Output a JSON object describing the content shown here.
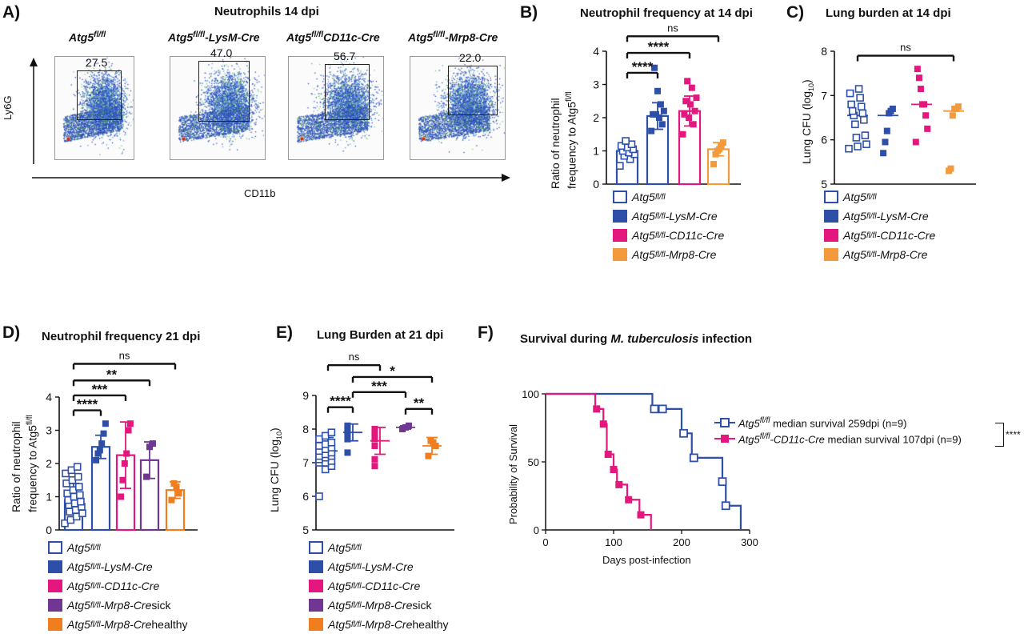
{
  "colors": {
    "fl": "#2e4fa8",
    "lysm": "#2e4fa8",
    "cd11c": "#e3177e",
    "mrp8": "#f39b3c",
    "mrp8_sick": "#6f3791",
    "mrp8_healthy": "#f07e1f"
  },
  "panel_a": {
    "letter": "A)",
    "title": "Neutrophils 14 dpi",
    "y_axis_label": "Ly6G",
    "x_axis_label": "CD11b",
    "plots": [
      {
        "label_base": "Atg5",
        "label_sup": "fl/fl",
        "label_suffix": "",
        "pct": "27.5"
      },
      {
        "label_base": "Atg5",
        "label_sup": "fl/fl",
        "label_suffix": "-LysM-Cre",
        "pct": "47.0"
      },
      {
        "label_base": "Atg5",
        "label_sup": "fl/fl",
        "label_suffix": "CD11c-Cre",
        "pct": "56.7"
      },
      {
        "label_base": "Atg5",
        "label_sup": "fl/fl",
        "label_suffix": "-Mrp8-Cre",
        "pct": "22.0"
      }
    ]
  },
  "legend_14": [
    {
      "base": "Atg5",
      "sup": "fl/fl",
      "suffix": "",
      "style": "open",
      "color": "#2e4fa8"
    },
    {
      "base": "Atg5",
      "sup": "fl/fl",
      "suffix": " -LysM-Cre",
      "style": "filled",
      "color": "#2e4fa8"
    },
    {
      "base": "Atg5",
      "sup": "fl/fl",
      "suffix": " -CD11c-Cre",
      "style": "filled",
      "color": "#e3177e"
    },
    {
      "base": "Atg5",
      "sup": "fl/fl",
      "suffix": "-Mrp8-Cre",
      "style": "filled",
      "color": "#f39b3c"
    }
  ],
  "legend_21": [
    {
      "base": "Atg5",
      "sup": "fl/fl",
      "suffix": "",
      "extra": "",
      "style": "open",
      "color": "#2e4fa8"
    },
    {
      "base": "Atg5",
      "sup": "fl/fl",
      "suffix": " -LysM-Cre",
      "extra": "",
      "style": "filled",
      "color": "#2e4fa8"
    },
    {
      "base": "Atg5",
      "sup": "fl/fl",
      "suffix": " -CD11c-Cre",
      "extra": "",
      "style": "filled",
      "color": "#e3177e"
    },
    {
      "base": "Atg5",
      "sup": "fl/fl",
      "suffix": " -Mrp8-Cre",
      "extra": " sick",
      "style": "filled",
      "color": "#6f3791"
    },
    {
      "base": "Atg5",
      "sup": "fl/fl",
      "suffix": " -Mrp8-Cre",
      "extra": " healthy",
      "style": "filled",
      "color": "#f07e1f"
    }
  ],
  "panel_letters": {
    "b": "B)",
    "c": "C)",
    "d": "D)",
    "e": "E)",
    "f": "F)"
  },
  "chart_data": [
    {
      "id": "B",
      "type": "bar",
      "title": "Neutrophil frequency at 14 dpi",
      "ylabel_line1": "Ratio of neutrophil",
      "ylabel_line2_base": "frequency to Atg5",
      "ylabel_line2_sup": "fl/fl",
      "ylim": [
        0,
        4
      ],
      "yticks": [
        "0",
        "1",
        "2",
        "3",
        "4"
      ],
      "groups": [
        {
          "name": "Atg5 fl/fl",
          "mean": 1.0,
          "sd": 0.15,
          "style": "open",
          "color": "#2e4fa8",
          "points": [
            0.55,
            0.75,
            0.85,
            0.9,
            0.95,
            1.0,
            1.05,
            1.1,
            1.15,
            1.2,
            1.3
          ]
        },
        {
          "name": "Atg5 fl/fl -LysM-Cre",
          "mean": 2.05,
          "sd": 0.4,
          "style": "filled",
          "color": "#2e4fa8",
          "points": [
            1.6,
            1.8,
            2.0,
            2.1,
            2.1,
            2.2,
            2.4,
            2.8,
            3.5
          ]
        },
        {
          "name": "Atg5 fl/fl -CD11c-Cre",
          "mean": 2.2,
          "sd": 0.45,
          "style": "filled",
          "color": "#e3177e",
          "points": [
            1.5,
            1.8,
            2.0,
            2.1,
            2.2,
            2.4,
            2.5,
            2.6,
            2.9,
            3.1
          ]
        },
        {
          "name": "Atg5 fl/fl-Mrp8-Cre",
          "mean": 1.05,
          "sd": 0.2,
          "style": "filled",
          "color": "#f39b3c",
          "points": [
            0.6,
            0.9,
            1.0,
            1.05,
            1.15,
            1.25
          ]
        }
      ],
      "brackets": [
        {
          "from": 0,
          "to": 3,
          "label": "ns",
          "level": 4.45
        },
        {
          "from": 0,
          "to": 2,
          "label": "****",
          "level": 3.95
        },
        {
          "from": 0,
          "to": 1,
          "label": "****",
          "level": 3.35
        }
      ]
    },
    {
      "id": "C",
      "type": "scatter",
      "title": "Lung burden at 14 dpi",
      "ylabel": "Lung CFU (log",
      "ylabel_sub": "10",
      "ylabel_end": ")",
      "ylim": [
        5,
        8
      ],
      "yticks": [
        "5",
        "6",
        "7",
        "8"
      ],
      "groups": [
        {
          "name": "Atg5 fl/fl",
          "median": 6.55,
          "style": "open",
          "color": "#2e4fa8",
          "points": [
            5.8,
            5.85,
            5.9,
            6.05,
            6.1,
            6.35,
            6.45,
            6.55,
            6.6,
            6.65,
            6.75,
            6.8,
            6.95,
            7.05,
            7.15
          ]
        },
        {
          "name": "Atg5 fl/fl -LysM-Cre",
          "median": 6.55,
          "style": "filled",
          "color": "#2e4fa8",
          "points": [
            5.7,
            5.95,
            6.2,
            6.6,
            6.65,
            6.7
          ]
        },
        {
          "name": "Atg5 fl/fl -CD11c-Cre",
          "median": 6.8,
          "style": "filled",
          "color": "#e3177e",
          "points": [
            5.95,
            6.25,
            6.55,
            6.8,
            6.8,
            7.15,
            7.4,
            7.6
          ]
        },
        {
          "name": "Atg5 fl/fl-Mrp8-Cre",
          "median": 6.65,
          "style": "filled",
          "color": "#f39b3c",
          "points": [
            5.3,
            5.35,
            6.55,
            6.7,
            6.7,
            6.75
          ]
        }
      ],
      "brackets": [
        {
          "from": 0,
          "to": 3,
          "label": "ns",
          "level": 7.9
        }
      ]
    },
    {
      "id": "D",
      "type": "bar",
      "title": "Neutrophil frequency 21 dpi",
      "ylabel_line1": "Ratio of neutrophil",
      "ylabel_line2_base": "frequency to Atg5",
      "ylabel_line2_sup": "fl/fl",
      "ylim": [
        0,
        4
      ],
      "yticks": [
        "0",
        "1",
        "2",
        "3",
        "4"
      ],
      "groups": [
        {
          "name": "Atg5 fl/fl",
          "mean": 0.9,
          "sd": 0.5,
          "style": "open",
          "color": "#2e4fa8",
          "points": [
            0.2,
            0.3,
            0.4,
            0.5,
            0.55,
            0.6,
            0.7,
            0.75,
            0.8,
            0.85,
            0.9,
            1.0,
            1.05,
            1.1,
            1.2,
            1.3,
            1.4,
            1.5,
            1.6,
            1.7,
            1.8,
            1.9
          ]
        },
        {
          "name": "Atg5 fl/fl -LysM-Cre",
          "mean": 2.5,
          "sd": 0.35,
          "style": "filled",
          "color": "#2e4fa8",
          "points": [
            2.1,
            2.3,
            2.4,
            2.6,
            2.9,
            3.2
          ]
        },
        {
          "name": "Atg5 fl/fl -CD11c-Cre",
          "mean": 2.25,
          "sd": 1.0,
          "style": "filled",
          "color": "#e3177e",
          "points": [
            1.0,
            1.5,
            2.0,
            2.3,
            3.0,
            3.2
          ]
        },
        {
          "name": "Atg5 fl/fl -Mrp8-Cre sick",
          "mean": 2.1,
          "sd": 0.55,
          "style": "filled",
          "color": "#6f3791",
          "points": [
            1.6,
            2.5,
            2.6
          ]
        },
        {
          "name": "Atg5 fl/fl -Mrp8-Cre healthy",
          "mean": 1.2,
          "sd": 0.25,
          "style": "filled",
          "color": "#f07e1f",
          "points": [
            0.9,
            1.1,
            1.3,
            1.4
          ]
        }
      ],
      "brackets": [
        {
          "from": 0,
          "to": 4,
          "label": "ns",
          "level": 5.0
        },
        {
          "from": 0,
          "to": 3,
          "label": "**",
          "level": 4.5
        },
        {
          "from": 0,
          "to": 2,
          "label": "***",
          "level": 4.05
        },
        {
          "from": 0,
          "to": 1,
          "label": "****",
          "level": 3.6
        }
      ]
    },
    {
      "id": "E",
      "type": "scatter",
      "title": "Lung Burden at 21 dpi",
      "ylabel": "Lung CFU (log",
      "ylabel_sub": "10",
      "ylabel_end": ")",
      "ylim": [
        5,
        9
      ],
      "yticks": [
        "5",
        "6",
        "7",
        "8",
        "9"
      ],
      "groups": [
        {
          "name": "Atg5 fl/fl",
          "mean": 7.35,
          "sd": 0.4,
          "style": "open",
          "color": "#2e4fa8",
          "points": [
            6.0,
            6.8,
            6.9,
            7.0,
            7.0,
            7.05,
            7.1,
            7.15,
            7.2,
            7.2,
            7.25,
            7.3,
            7.35,
            7.4,
            7.45,
            7.5,
            7.55,
            7.6,
            7.7,
            7.8,
            7.9
          ]
        },
        {
          "name": "Atg5 fl/fl -LysM-Cre",
          "mean": 7.9,
          "sd": 0.25,
          "style": "filled",
          "color": "#2e4fa8",
          "points": [
            7.3,
            7.7,
            7.85,
            7.95,
            8.0,
            8.05,
            8.1
          ]
        },
        {
          "name": "Atg5 fl/fl -CD11c-Cre",
          "mean": 7.65,
          "sd": 0.4,
          "style": "filled",
          "color": "#e3177e",
          "points": [
            6.9,
            7.1,
            7.5,
            7.7,
            7.8,
            7.9,
            8.0
          ]
        },
        {
          "name": "Atg5 fl/fl -Mrp8-Cre sick",
          "mean": 8.05,
          "sd": 0.05,
          "style": "filled",
          "color": "#6f3791",
          "points": [
            8.0,
            8.05,
            8.1
          ]
        },
        {
          "name": "Atg5 fl/fl -Mrp8-Cre healthy",
          "mean": 7.5,
          "sd": 0.25,
          "style": "filled",
          "color": "#f07e1f",
          "points": [
            7.2,
            7.5,
            7.6,
            7.65
          ]
        }
      ],
      "brackets": [
        {
          "from": 0,
          "to": 2,
          "label": "ns",
          "level": 9.9
        },
        {
          "from": 1,
          "to": 4,
          "label": "*",
          "level": 9.55
        },
        {
          "from": 1,
          "to": 3,
          "label": "***",
          "level": 9.1
        },
        {
          "from": 0,
          "to": 1,
          "label": "****",
          "level": 8.65
        },
        {
          "from": 3,
          "to": 4,
          "label": "**",
          "level": 8.6
        }
      ]
    },
    {
      "id": "F",
      "type": "line",
      "title_pre": "Survival during ",
      "title_em": "M. tuberculosis",
      "title_post": " infection",
      "xlabel": "Days post-infection",
      "ylabel": "Probability of Survival",
      "xlim": [
        0,
        300
      ],
      "ylim": [
        0,
        100
      ],
      "xticks": [
        "0",
        "100",
        "200",
        "300"
      ],
      "yticks": [
        "0",
        "50",
        "100"
      ],
      "series": [
        {
          "name_base": "Atg5",
          "name_sup": "fl/fl",
          "name_suffix": "",
          "note": " median survival 259dpi (n=9)",
          "style": "open",
          "color": "#2e4fa8",
          "steps": [
            [
              0,
              100
            ],
            [
              157,
              100
            ],
            [
              157,
              88.9
            ],
            [
              172,
              88.9
            ],
            [
              172,
              88.9
            ],
            [
              200,
              88.9
            ],
            [
              200,
              71
            ],
            [
              215,
              71
            ],
            [
              215,
              53
            ],
            [
              260,
              53
            ],
            [
              260,
              35.5
            ],
            [
              265,
              35.5
            ],
            [
              265,
              17.8
            ],
            [
              287,
              17.8
            ],
            [
              287,
              0
            ]
          ],
          "markers": [
            [
              160,
              88.9
            ],
            [
              172,
              88.9
            ],
            [
              203,
              71
            ],
            [
              218,
              53
            ],
            [
              260,
              35.5
            ],
            [
              265,
              17.8
            ]
          ]
        },
        {
          "name_base": "Atg5",
          "name_sup": "fl/fl",
          "name_suffix": "-CD11c-Cre",
          "note": " median survival 107dpi (n=9)",
          "style": "filled",
          "color": "#e3177e",
          "steps": [
            [
              0,
              100
            ],
            [
              73,
              100
            ],
            [
              73,
              88.9
            ],
            [
              85,
              88.9
            ],
            [
              85,
              77.8
            ],
            [
              90,
              77.8
            ],
            [
              90,
              55.6
            ],
            [
              100,
              55.6
            ],
            [
              100,
              44.4
            ],
            [
              105,
              44.4
            ],
            [
              105,
              33.3
            ],
            [
              120,
              33.3
            ],
            [
              120,
              22.2
            ],
            [
              138,
              22.2
            ],
            [
              138,
              11.1
            ],
            [
              155,
              11.1
            ],
            [
              155,
              0
            ]
          ],
          "markers": [
            [
              75,
              88.9
            ],
            [
              85,
              77.8
            ],
            [
              92,
              55.6
            ],
            [
              100,
              44.4
            ],
            [
              108,
              33.3
            ],
            [
              122,
              22.2
            ],
            [
              140,
              11.1
            ]
          ]
        }
      ],
      "significance": "****"
    }
  ]
}
